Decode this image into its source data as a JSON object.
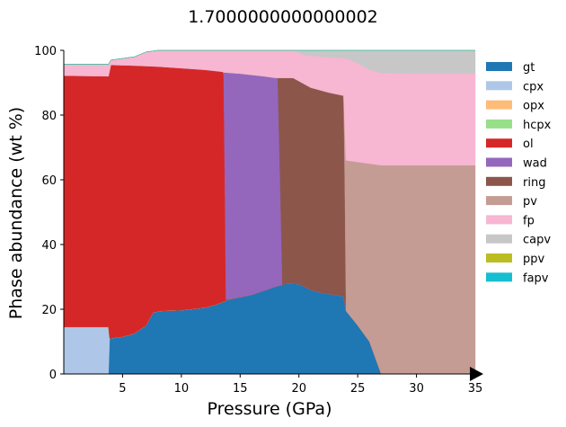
{
  "chart_data": {
    "type": "area",
    "title": "1.7000000000000002",
    "xlabel": "Pressure (GPa)",
    "ylabel": "Phase abundance (wt %)",
    "xlim": [
      0,
      35
    ],
    "ylim": [
      0,
      100
    ],
    "x_ticks": [
      5,
      10,
      15,
      20,
      25,
      30,
      35
    ],
    "y_ticks": [
      0,
      20,
      40,
      60,
      80,
      100
    ],
    "legend": "outside-right",
    "stacked_boundaries": {
      "gt": [
        [
          0,
          0
        ],
        [
          3.8,
          0
        ],
        [
          3.9,
          11
        ],
        [
          5,
          11.5
        ],
        [
          6,
          12.5
        ],
        [
          7,
          15
        ],
        [
          7.6,
          19
        ],
        [
          8.3,
          19.5
        ],
        [
          10,
          19.7
        ],
        [
          12,
          20.5
        ],
        [
          13,
          21.5
        ],
        [
          14,
          23
        ],
        [
          16,
          24.5
        ],
        [
          18,
          27
        ],
        [
          19,
          28
        ],
        [
          20,
          27.8
        ],
        [
          21,
          26
        ],
        [
          22,
          25
        ],
        [
          23,
          24.5
        ],
        [
          23.8,
          24
        ],
        [
          24,
          19.5
        ],
        [
          25,
          15
        ],
        [
          26,
          10
        ],
        [
          26.5,
          5
        ],
        [
          27,
          0
        ],
        [
          35,
          0
        ]
      ],
      "cpx": [
        [
          0,
          14.5
        ],
        [
          3.8,
          14.5
        ],
        [
          3.9,
          11
        ],
        [
          5,
          11.5
        ],
        [
          6,
          12.5
        ],
        [
          7,
          15
        ],
        [
          7.6,
          19
        ],
        [
          8.3,
          19.5
        ],
        [
          10,
          19.7
        ],
        [
          12,
          20.5
        ],
        [
          13,
          21.5
        ],
        [
          14,
          23
        ],
        [
          16,
          24.5
        ],
        [
          18,
          27
        ],
        [
          19,
          28
        ],
        [
          20,
          27.8
        ],
        [
          21,
          26
        ],
        [
          22,
          25
        ],
        [
          23,
          24.5
        ],
        [
          23.8,
          24
        ],
        [
          24,
          19.5
        ],
        [
          25,
          15
        ],
        [
          26,
          10
        ],
        [
          26.5,
          5
        ],
        [
          27,
          0
        ],
        [
          35,
          0
        ]
      ],
      "opx": [
        [
          0,
          14.5
        ],
        [
          3.8,
          14.5
        ],
        [
          3.9,
          11
        ],
        [
          5,
          11.5
        ],
        [
          6,
          12.5
        ],
        [
          7,
          15
        ],
        [
          7.6,
          19
        ],
        [
          8.3,
          19.5
        ],
        [
          10,
          19.7
        ],
        [
          12,
          20.5
        ],
        [
          13,
          21.5
        ],
        [
          14,
          23
        ],
        [
          16,
          24.5
        ],
        [
          18,
          27
        ],
        [
          19,
          28
        ],
        [
          20,
          27.8
        ],
        [
          21,
          26
        ],
        [
          22,
          25
        ],
        [
          23,
          24.5
        ],
        [
          23.8,
          24
        ],
        [
          24,
          19.5
        ],
        [
          25,
          15
        ],
        [
          26,
          10
        ],
        [
          26.5,
          5
        ],
        [
          27,
          0
        ],
        [
          35,
          0
        ]
      ],
      "hcpx": [
        [
          0,
          14.5
        ],
        [
          3.8,
          14.5
        ],
        [
          3.9,
          11
        ],
        [
          5,
          11.5
        ],
        [
          6,
          12.5
        ],
        [
          7,
          15
        ],
        [
          7.6,
          19
        ],
        [
          8.3,
          19.5
        ],
        [
          10,
          19.7
        ],
        [
          12,
          20.5
        ],
        [
          13,
          21.5
        ],
        [
          14,
          23
        ],
        [
          16,
          24.5
        ],
        [
          18,
          27
        ],
        [
          19,
          28
        ],
        [
          20,
          27.8
        ],
        [
          21,
          26
        ],
        [
          22,
          25
        ],
        [
          23,
          24.5
        ],
        [
          23.8,
          24
        ],
        [
          24,
          19.5
        ],
        [
          25,
          15
        ],
        [
          26,
          10
        ],
        [
          26.5,
          5
        ],
        [
          27,
          0
        ],
        [
          35,
          0
        ]
      ],
      "ol": [
        [
          0,
          92.2
        ],
        [
          3.8,
          92
        ],
        [
          4,
          95.5
        ],
        [
          6,
          95.3
        ],
        [
          8,
          95
        ],
        [
          10,
          94.5
        ],
        [
          12,
          94
        ],
        [
          13.5,
          93.4
        ],
        [
          13.6,
          92.5
        ],
        [
          13.7,
          60
        ],
        [
          13.8,
          23
        ],
        [
          16,
          24.5
        ],
        [
          18,
          27
        ],
        [
          19,
          28
        ],
        [
          20,
          27.8
        ],
        [
          21,
          26
        ],
        [
          22,
          25
        ],
        [
          23,
          24.5
        ],
        [
          23.8,
          24
        ],
        [
          24,
          19.5
        ],
        [
          25,
          15
        ],
        [
          26,
          10
        ],
        [
          26.5,
          5
        ],
        [
          27,
          0
        ],
        [
          35,
          0
        ]
      ],
      "wad": [
        [
          0,
          92.2
        ],
        [
          3.8,
          92
        ],
        [
          4,
          95.5
        ],
        [
          6,
          95.3
        ],
        [
          8,
          95
        ],
        [
          10,
          94.5
        ],
        [
          12,
          94
        ],
        [
          13.5,
          93.4
        ],
        [
          13.6,
          93.2
        ],
        [
          15,
          92.8
        ],
        [
          17,
          92
        ],
        [
          18,
          91.5
        ],
        [
          18.2,
          91.5
        ],
        [
          18.4,
          60
        ],
        [
          18.6,
          27.5
        ],
        [
          19,
          28
        ],
        [
          20,
          27.8
        ],
        [
          21,
          26
        ],
        [
          22,
          25
        ],
        [
          23,
          24.5
        ],
        [
          23.8,
          24
        ],
        [
          24,
          19.5
        ],
        [
          25,
          15
        ],
        [
          26,
          10
        ],
        [
          26.5,
          5
        ],
        [
          27,
          0
        ],
        [
          35,
          0
        ]
      ],
      "ring": [
        [
          0,
          92.2
        ],
        [
          3.8,
          92
        ],
        [
          4,
          95.5
        ],
        [
          6,
          95.3
        ],
        [
          8,
          95
        ],
        [
          10,
          94.5
        ],
        [
          12,
          94
        ],
        [
          13.5,
          93.4
        ],
        [
          13.6,
          93.2
        ],
        [
          15,
          92.8
        ],
        [
          17,
          92
        ],
        [
          18,
          91.5
        ],
        [
          19.5,
          91.5
        ],
        [
          21,
          88.5
        ],
        [
          22.5,
          87
        ],
        [
          23.8,
          86
        ],
        [
          23.9,
          60
        ],
        [
          24,
          24
        ],
        [
          24,
          19.5
        ],
        [
          25,
          15
        ],
        [
          26,
          10
        ],
        [
          26.5,
          5
        ],
        [
          27,
          0
        ],
        [
          35,
          0
        ]
      ],
      "pv": [
        [
          0,
          92.2
        ],
        [
          3.8,
          92
        ],
        [
          4,
          95.5
        ],
        [
          6,
          95.3
        ],
        [
          8,
          95
        ],
        [
          10,
          94.5
        ],
        [
          12,
          94
        ],
        [
          13.5,
          93.4
        ],
        [
          13.6,
          93.2
        ],
        [
          15,
          92.8
        ],
        [
          17,
          92
        ],
        [
          18,
          91.5
        ],
        [
          19.5,
          91.5
        ],
        [
          21,
          88.5
        ],
        [
          22.5,
          87
        ],
        [
          23.8,
          86
        ],
        [
          24,
          66
        ],
        [
          26,
          65
        ],
        [
          27,
          64.5
        ],
        [
          35,
          64.5
        ]
      ],
      "fp": [
        [
          0,
          95.7
        ],
        [
          3.8,
          95.7
        ],
        [
          4,
          97
        ],
        [
          5,
          97.5
        ],
        [
          6,
          98
        ],
        [
          7,
          99.5
        ],
        [
          8,
          100
        ],
        [
          19.5,
          100
        ],
        [
          20.5,
          98.5
        ],
        [
          22,
          98
        ],
        [
          24,
          97.5
        ],
        [
          25,
          96
        ],
        [
          26,
          94
        ],
        [
          27,
          93
        ],
        [
          30,
          92.8
        ],
        [
          35,
          92.8
        ]
      ],
      "capv": [
        [
          0,
          95.7
        ],
        [
          3.8,
          95.7
        ],
        [
          4,
          97
        ],
        [
          5,
          97.5
        ],
        [
          6,
          98
        ],
        [
          7,
          99.5
        ],
        [
          8,
          100
        ],
        [
          35,
          100
        ]
      ],
      "ppv": [
        [
          0,
          95.7
        ],
        [
          3.8,
          95.7
        ],
        [
          4,
          97
        ],
        [
          5,
          97.5
        ],
        [
          6,
          98
        ],
        [
          7,
          99.5
        ],
        [
          8,
          100
        ],
        [
          35,
          100
        ]
      ],
      "fapv": [
        [
          0,
          95.7
        ],
        [
          3.8,
          95.7
        ],
        [
          4,
          97
        ],
        [
          5,
          97.5
        ],
        [
          6,
          98
        ],
        [
          7,
          99.5
        ],
        [
          8,
          100
        ],
        [
          35,
          100
        ]
      ]
    },
    "series": [
      {
        "name": "gt",
        "color": "#1f77b4"
      },
      {
        "name": "cpx",
        "color": "#aec7e8"
      },
      {
        "name": "opx",
        "color": "#ffbb78"
      },
      {
        "name": "hcpx",
        "color": "#98df8a"
      },
      {
        "name": "ol",
        "color": "#d62728"
      },
      {
        "name": "wad",
        "color": "#9467bd"
      },
      {
        "name": "ring",
        "color": "#8c564b"
      },
      {
        "name": "pv",
        "color": "#c49c94"
      },
      {
        "name": "fp",
        "color": "#f7b6d2"
      },
      {
        "name": "capv",
        "color": "#c7c7c7"
      },
      {
        "name": "ppv",
        "color": "#bcbd22"
      },
      {
        "name": "fapv",
        "color": "#17becf"
      }
    ]
  }
}
